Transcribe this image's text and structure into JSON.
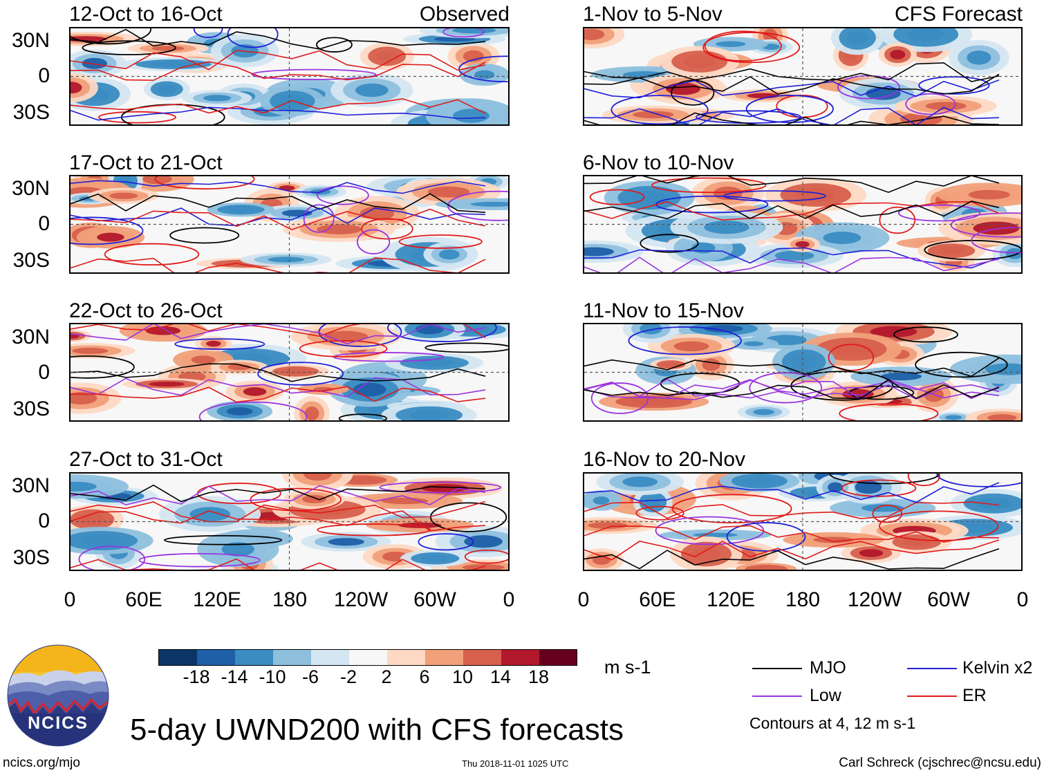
{
  "panels": {
    "left": [
      {
        "period": "12-Oct to 16-Oct",
        "header": "Observed"
      },
      {
        "period": "17-Oct to 21-Oct",
        "header": ""
      },
      {
        "period": "22-Oct to 26-Oct",
        "header": ""
      },
      {
        "period": "27-Oct to 31-Oct",
        "header": ""
      }
    ],
    "right": [
      {
        "period": "1-Nov to 5-Nov",
        "header": "CFS Forecast"
      },
      {
        "period": "6-Nov to 10-Nov",
        "header": ""
      },
      {
        "period": "11-Nov to 15-Nov",
        "header": ""
      },
      {
        "period": "16-Nov to 20-Nov",
        "header": ""
      }
    ]
  },
  "axes": {
    "lat_labels": [
      "30N",
      "0",
      "30S"
    ],
    "lon_labels": [
      "0",
      "60E",
      "120E",
      "180",
      "120W",
      "60W",
      "0"
    ]
  },
  "colorbar": {
    "ticks": [
      "-18",
      "-14",
      "-10",
      "-6",
      "-2",
      "2",
      "6",
      "10",
      "14",
      "18"
    ],
    "colors": [
      "#0b3567",
      "#1e5fa8",
      "#3a8cc2",
      "#8ec0de",
      "#d4e6f1",
      "#f7f7f7",
      "#fdd9c4",
      "#f1a07a",
      "#d6604d",
      "#b2182b",
      "#67001f"
    ],
    "units": "m s-1"
  },
  "legend": {
    "items": [
      {
        "label": "MJO",
        "color": "#000000"
      },
      {
        "label": "Kelvin x2",
        "color": "#1f1fd6"
      },
      {
        "label": "Low",
        "color": "#9a33e0"
      },
      {
        "label": "ER",
        "color": "#e01a1a"
      }
    ],
    "note": "Contours at 4, 12 m s-1"
  },
  "logo": {
    "text": "NCICS"
  },
  "title": "5-day UWND200 with CFS forecasts",
  "footer": {
    "left": "ncics.org/mjo",
    "center": "Thu 2018-11-01 1025 UTC",
    "right": "Carl Schreck (cjschrec@ncsu.edu)"
  }
}
